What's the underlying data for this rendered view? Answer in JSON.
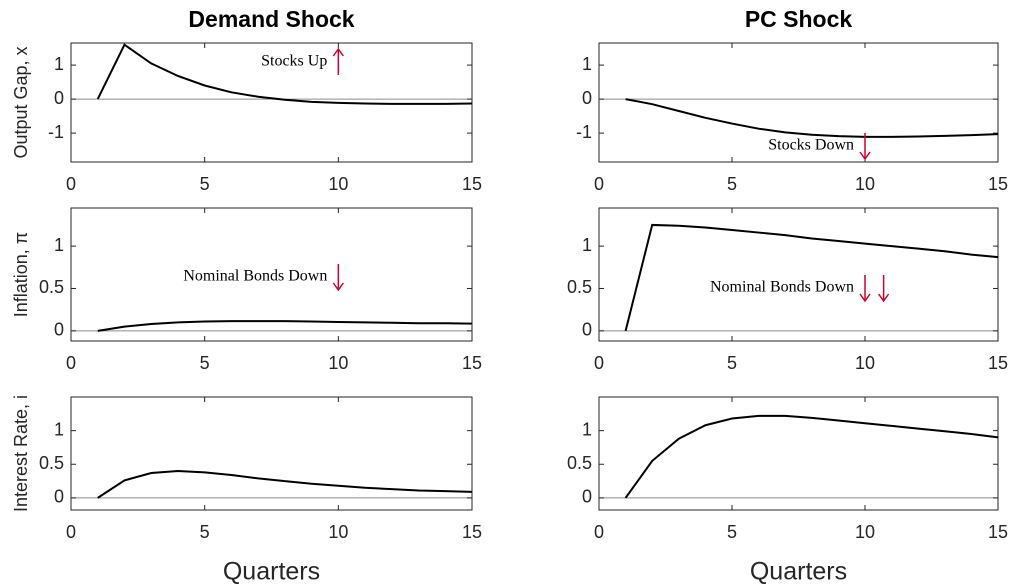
{
  "chart_data": [
    {
      "type": "line",
      "title": "Demand Shock",
      "ylabel": "Output Gap, x",
      "annotation": "Stocks Up",
      "color": "#000000",
      "x": [
        1,
        2,
        3,
        4,
        5,
        6,
        7,
        8,
        9,
        10,
        11,
        12,
        13,
        14,
        15
      ],
      "values": [
        0,
        1.6,
        1.05,
        0.68,
        0.4,
        0.2,
        0.07,
        -0.02,
        -0.08,
        -0.11,
        -0.13,
        -0.14,
        -0.14,
        -0.14,
        -0.13
      ],
      "xlim": [
        0,
        15
      ],
      "xticks": [
        0,
        5,
        10,
        15
      ],
      "ylim": [
        -1.85,
        1.65
      ],
      "yticks": [
        -1,
        0,
        1
      ]
    },
    {
      "type": "line",
      "title": "PC Shock",
      "annotation": "Stocks Down",
      "color": "#000000",
      "x": [
        1,
        2,
        3,
        4,
        5,
        6,
        7,
        8,
        9,
        10,
        11,
        12,
        13,
        14,
        15
      ],
      "values": [
        0,
        -0.15,
        -0.35,
        -0.55,
        -0.72,
        -0.87,
        -0.98,
        -1.05,
        -1.09,
        -1.11,
        -1.11,
        -1.1,
        -1.08,
        -1.06,
        -1.03
      ],
      "xlim": [
        0,
        15
      ],
      "xticks": [
        0,
        5,
        10,
        15
      ],
      "ylim": [
        -1.85,
        1.65
      ],
      "yticks": [
        -1,
        0,
        1
      ]
    },
    {
      "type": "line",
      "ylabel": "Inflation, π",
      "annotation": "Nominal Bonds Down",
      "color": "#000000",
      "x": [
        1,
        2,
        3,
        4,
        5,
        6,
        7,
        8,
        9,
        10,
        11,
        12,
        13,
        14,
        15
      ],
      "values": [
        0,
        0.05,
        0.08,
        0.1,
        0.11,
        0.115,
        0.115,
        0.115,
        0.11,
        0.105,
        0.1,
        0.095,
        0.09,
        0.09,
        0.085
      ],
      "xlim": [
        0,
        15
      ],
      "xticks": [
        0,
        5,
        10,
        15
      ],
      "ylim": [
        -0.12,
        1.45
      ],
      "yticks": [
        0,
        0.5,
        1
      ]
    },
    {
      "type": "line",
      "annotation": "Nominal Bonds Down",
      "color": "#000000",
      "x": [
        1,
        2,
        3,
        4,
        5,
        6,
        7,
        8,
        9,
        10,
        11,
        12,
        13,
        14,
        15
      ],
      "values": [
        0,
        1.25,
        1.24,
        1.22,
        1.19,
        1.16,
        1.13,
        1.09,
        1.06,
        1.03,
        1.0,
        0.97,
        0.94,
        0.9,
        0.87
      ],
      "xlim": [
        0,
        15
      ],
      "xticks": [
        0,
        5,
        10,
        15
      ],
      "ylim": [
        -0.12,
        1.45
      ],
      "yticks": [
        0,
        0.5,
        1
      ]
    },
    {
      "type": "line",
      "ylabel": "Interest Rate, i",
      "xlabel": "Quarters",
      "color": "#000000",
      "x": [
        1,
        2,
        3,
        4,
        5,
        6,
        7,
        8,
        9,
        10,
        11,
        12,
        13,
        14,
        15
      ],
      "values": [
        0,
        0.26,
        0.37,
        0.4,
        0.38,
        0.34,
        0.29,
        0.25,
        0.21,
        0.18,
        0.15,
        0.13,
        0.11,
        0.1,
        0.09
      ],
      "xlim": [
        0,
        15
      ],
      "xticks": [
        0,
        5,
        10,
        15
      ],
      "ylim": [
        -0.18,
        1.5
      ],
      "yticks": [
        0,
        0.5,
        1
      ]
    },
    {
      "type": "line",
      "xlabel": "Quarters",
      "color": "#000000",
      "x": [
        1,
        2,
        3,
        4,
        5,
        6,
        7,
        8,
        9,
        10,
        11,
        12,
        13,
        14,
        15
      ],
      "values": [
        0,
        0.55,
        0.88,
        1.08,
        1.18,
        1.22,
        1.22,
        1.19,
        1.15,
        1.11,
        1.07,
        1.03,
        0.99,
        0.95,
        0.9
      ],
      "xlim": [
        0,
        15
      ],
      "xticks": [
        0,
        5,
        10,
        15
      ],
      "ylim": [
        -0.18,
        1.5
      ],
      "yticks": [
        0,
        0.5,
        1
      ]
    }
  ]
}
